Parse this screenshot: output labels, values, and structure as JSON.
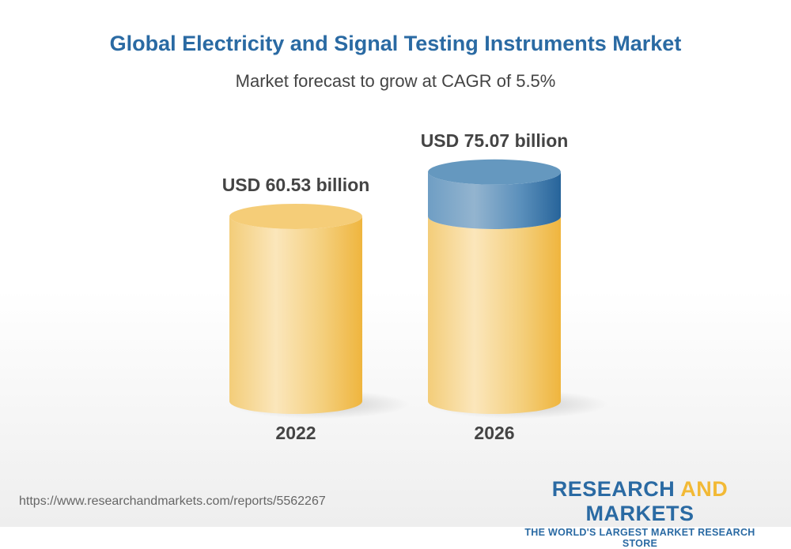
{
  "chart_data": {
    "type": "bar",
    "title": "Global Electricity and Signal Testing Instruments Market",
    "subtitle": "Market forecast to grow at CAGR of 5.5%",
    "categories": [
      "2022",
      "2026"
    ],
    "values": [
      60.53,
      75.07
    ],
    "unit": "USD billion",
    "data_labels": [
      "USD 60.53 billion",
      "USD 75.07 billion"
    ],
    "style": "3d-cylinder",
    "colors": {
      "base": "#f2c14e",
      "growth": "#4f88b8"
    }
  },
  "footer": {
    "url": "https://www.researchandmarkets.com/reports/5562267",
    "logo_part1": "RESEARCH ",
    "logo_part2": "AND",
    "logo_part3": " MARKETS",
    "tagline": "THE WORLD'S LARGEST MARKET RESEARCH STORE"
  }
}
